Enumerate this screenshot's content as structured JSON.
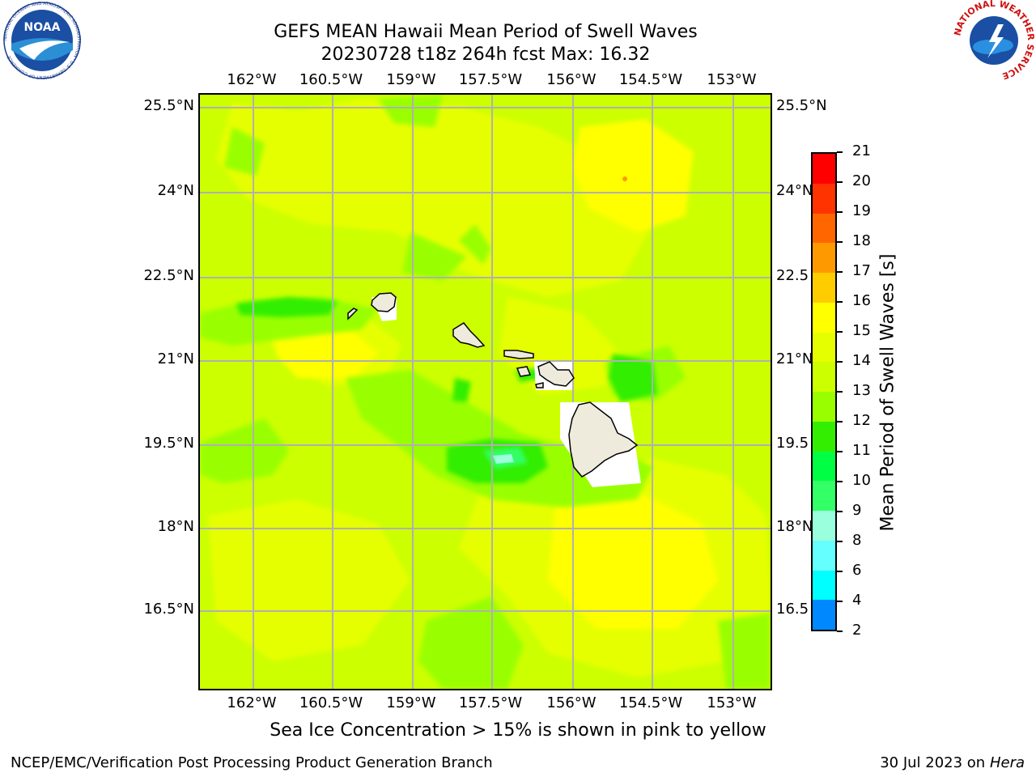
{
  "title_line1": "GEFS MEAN Hawaii Mean Period of Swell Waves",
  "title_line2": "20230728 t18z 264h fcst   Max: 16.32",
  "lon_ticks": [
    "162°W",
    "160.5°W",
    "159°W",
    "157.5°W",
    "156°W",
    "154.5°W",
    "153°W"
  ],
  "lat_ticks_left": [
    "25.5°N",
    "24°N",
    "22.5°N",
    "21°N",
    "19.5°N",
    "18°N",
    "16.5°N"
  ],
  "lat_ticks_right": [
    "25.5°N",
    "24°N",
    "22.5",
    "21°N",
    "19.5",
    "18°N",
    "16.5"
  ],
  "colorbar": {
    "label": "Mean Period of Swell Waves [s]",
    "ticks": [
      "21",
      "20",
      "19",
      "18",
      "17",
      "16",
      "15",
      "14",
      "13",
      "12",
      "11",
      "10",
      "9",
      "8",
      "6",
      "4",
      "2"
    ],
    "colors": [
      "#ff0000",
      "#ff3300",
      "#ff6600",
      "#ff9900",
      "#ffcc00",
      "#ffff00",
      "#e6ff00",
      "#ccff00",
      "#99ff00",
      "#33ee00",
      "#00ff44",
      "#33ff66",
      "#99ffdd",
      "#66ffff",
      "#00ffff",
      "#0088ff",
      "#0033ff",
      "#0000ff"
    ]
  },
  "field_colors": {
    "land": "#eeebdc",
    "coast": "#000000",
    "grid": "#b0b0b0"
  },
  "note": "Sea Ice Concentration > 15% is shown in pink to yellow",
  "footer_left": "NCEP/EMC/Verification Post Processing Product Generation Branch",
  "footer_right_date": "30 Jul 2023 on ",
  "footer_right_machine": "Hera",
  "logos": {
    "noaa_text": "NOAA",
    "noaa_ring": "NATIONAL OCEANIC AND ATMOSPHERIC ADMINISTRATION · U.S. DEPARTMENT OF COMMERCE",
    "nws_ring": "NATIONAL WEATHER SERVICE"
  }
}
